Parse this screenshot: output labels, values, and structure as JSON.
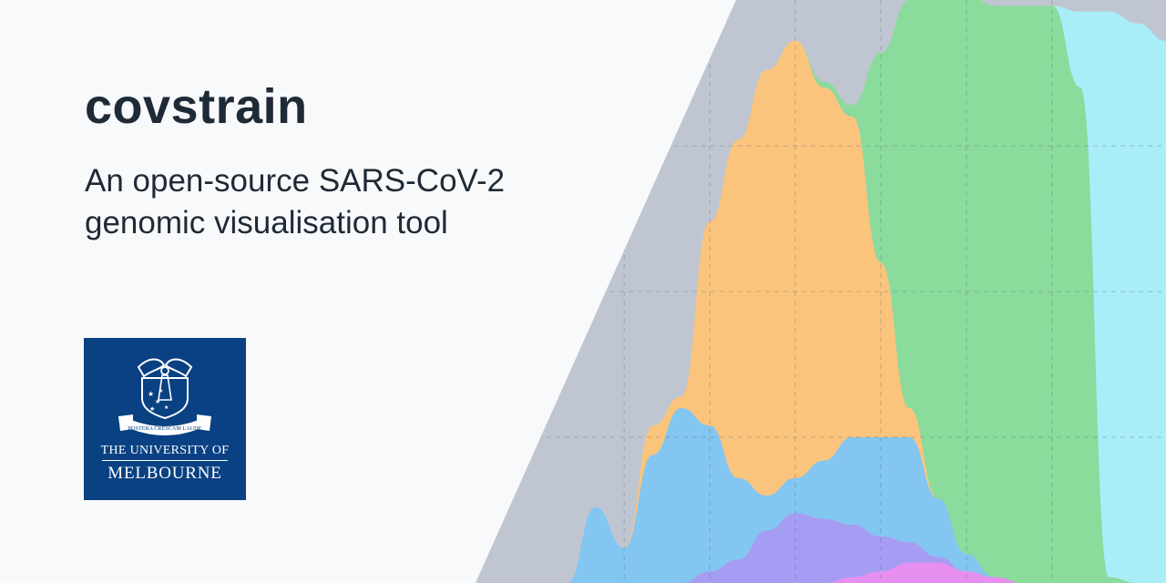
{
  "header": {
    "title": "covstrain",
    "subtitle_line1": "An open-source SARS-CoV-2",
    "subtitle_line2": "genomic visualisation tool"
  },
  "logo": {
    "motto": "POSTERA CRESCAM LAUDE",
    "line1": "THE UNIVERSITY OF",
    "line2": "MELBOURNE",
    "background_color": "#094183"
  },
  "colors": {
    "page_background": "#f8f9fa",
    "text": "#1f2a37",
    "chart_backdrop": "#bfc6d1",
    "orange_area": "#fbc47c",
    "green_area": "#8adb9c",
    "blue_area": "#82c6f1",
    "purple_area": "#a59cf3",
    "pink_area": "#e68ff0",
    "cyan_area": "#a9edf9",
    "teal_overlap": "#82d5c6"
  },
  "chart_data": {
    "type": "area",
    "stacked": true,
    "grid": true,
    "legend": "none",
    "ylim": [
      0,
      1
    ],
    "x": [
      0,
      1,
      2,
      3,
      4,
      5,
      6,
      7,
      8,
      9,
      10,
      11,
      12,
      13,
      14,
      15,
      16,
      17,
      18,
      19,
      20,
      21,
      22,
      23
    ],
    "series": [
      {
        "color": "#e68ff0",
        "values": [
          0,
          0,
          0,
          0,
          0,
          0,
          0,
          0,
          0,
          0,
          0,
          0,
          0.01,
          0.02,
          0.035,
          0.035,
          0.02,
          0.01,
          0,
          0,
          0,
          0,
          0,
          0
        ]
      },
      {
        "color": "#a59cf3",
        "values": [
          0,
          0,
          0,
          0,
          0,
          0,
          0,
          0.02,
          0.04,
          0.09,
          0.12,
          0.11,
          0.09,
          0.06,
          0.035,
          0.01,
          0,
          0,
          0,
          0,
          0,
          0,
          0,
          0
        ]
      },
      {
        "color": "#82c6f1",
        "values": [
          0,
          0,
          0,
          0.13,
          0.06,
          0.22,
          0.3,
          0.25,
          0.14,
          0.06,
          0.06,
          0.1,
          0.15,
          0.17,
          0.18,
          0.1,
          0.03,
          0,
          0,
          0,
          0,
          0,
          0,
          0
        ]
      },
      {
        "color": "#fbc47c",
        "values": [
          0,
          0,
          0,
          0,
          0,
          0.05,
          0.02,
          0.35,
          0.58,
          0.73,
          0.75,
          0.64,
          0.55,
          0.3,
          0.05,
          0,
          0,
          0,
          0,
          0,
          0,
          0,
          0,
          0
        ]
      },
      {
        "color": "#8adb9c",
        "values": [
          0,
          0,
          0,
          0,
          0,
          0,
          0,
          0,
          0,
          0,
          0,
          0.01,
          0.02,
          0.36,
          0.7,
          0.86,
          0.96,
          0.98,
          0.99,
          0.99,
          0.85,
          0.01,
          0,
          0
        ]
      },
      {
        "color": "#a9edf9",
        "values": [
          0,
          0,
          0,
          0,
          0,
          0,
          0,
          0,
          0,
          0,
          0,
          0,
          0,
          0,
          0,
          0,
          0,
          0,
          0,
          0,
          0.13,
          0.97,
          0.96,
          0.93
        ]
      }
    ]
  }
}
